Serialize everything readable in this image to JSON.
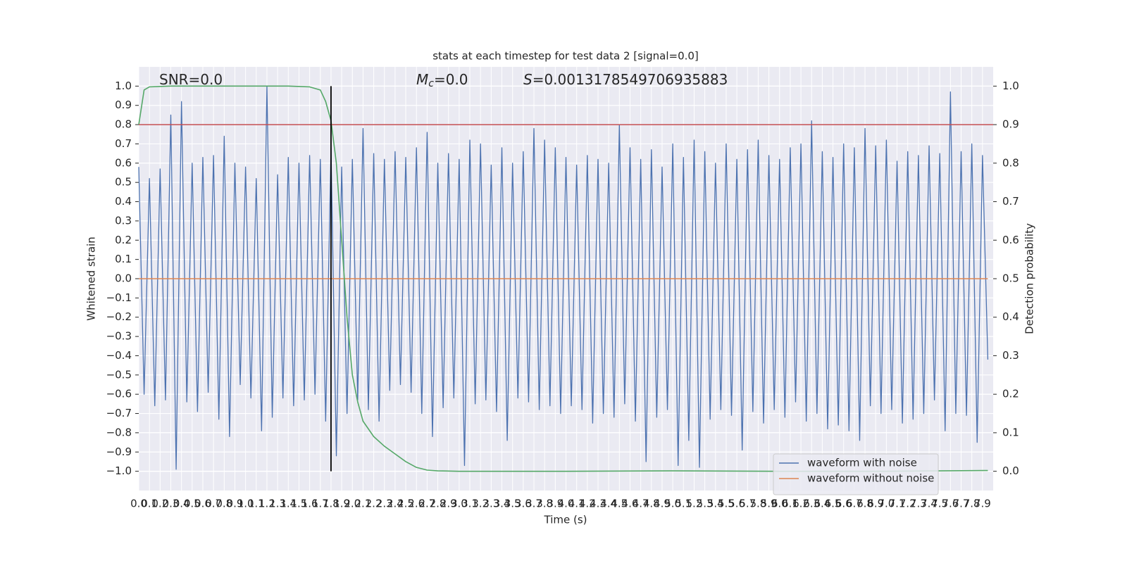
{
  "chart_data": {
    "type": "line",
    "title": "stats at each timestep for test data 2 [signal=0.0]",
    "x_label": "Time (s)",
    "y_label": "Whitened strain",
    "y2_label": "Detection probability",
    "annotations": [
      {
        "text": "SNR=0.0"
      },
      {
        "symbol": "M",
        "subscript": "c",
        "text": "=0.0"
      },
      {
        "symbol": "S",
        "text": "=0.0013178549706935883"
      }
    ],
    "xlim": [
      0,
      8.0
    ],
    "ylim": [
      -1.1,
      1.1
    ],
    "y2lim": [
      -0.05,
      1.05
    ],
    "grid": true,
    "legend": "lower right",
    "xticks": [
      {
        "value": 0.0,
        "label": "0.0"
      },
      {
        "value": 0.1,
        "label": "0.1"
      },
      {
        "value": 0.2,
        "label": "0.2"
      },
      {
        "value": 0.3,
        "label": "0.3"
      },
      {
        "value": 0.4,
        "label": "0.4"
      },
      {
        "value": 0.5,
        "label": "0.5"
      },
      {
        "value": 0.6,
        "label": "0.6"
      },
      {
        "value": 0.7,
        "label": "0.7"
      },
      {
        "value": 0.8,
        "label": "0.8"
      },
      {
        "value": 0.9,
        "label": "0.9"
      },
      {
        "value": 1.0,
        "label": "1.0"
      },
      {
        "value": 1.1,
        "label": "1.1"
      },
      {
        "value": 1.2,
        "label": "1.2"
      },
      {
        "value": 1.3,
        "label": "1.3"
      },
      {
        "value": 1.4,
        "label": "1.4"
      },
      {
        "value": 1.5,
        "label": "1.5"
      },
      {
        "value": 1.6,
        "label": "1.6"
      },
      {
        "value": 1.7,
        "label": "1.7"
      },
      {
        "value": 1.8,
        "label": "1.8"
      },
      {
        "value": 1.9,
        "label": "1.9"
      },
      {
        "value": 2.0,
        "label": "2.0"
      },
      {
        "value": 2.1,
        "label": "2.1"
      },
      {
        "value": 2.2,
        "label": "2.2"
      },
      {
        "value": 2.3,
        "label": "2.3"
      },
      {
        "value": 2.4,
        "label": "2.4"
      },
      {
        "value": 2.5,
        "label": "2.5"
      },
      {
        "value": 2.6,
        "label": "2.6"
      },
      {
        "value": 2.7,
        "label": "2.7"
      },
      {
        "value": 2.8,
        "label": "2.8"
      },
      {
        "value": 2.9,
        "label": "2.9"
      },
      {
        "value": 3.0,
        "label": "3.0"
      },
      {
        "value": 3.1,
        "label": "3.1"
      },
      {
        "value": 3.2,
        "label": "3.2"
      },
      {
        "value": 3.3,
        "label": "3.3"
      },
      {
        "value": 3.4,
        "label": "3.4"
      },
      {
        "value": 3.5,
        "label": "3.5"
      },
      {
        "value": 3.6,
        "label": "3.6"
      },
      {
        "value": 3.7,
        "label": "3.7"
      },
      {
        "value": 3.8,
        "label": "3.8"
      },
      {
        "value": 3.9,
        "label": "3.9"
      },
      {
        "value": 4.0,
        "label": "4.0"
      },
      {
        "value": 4.1,
        "label": "4.1"
      },
      {
        "value": 4.2,
        "label": "4.2"
      },
      {
        "value": 4.3,
        "label": "4.3"
      },
      {
        "value": 4.4,
        "label": "4.4"
      },
      {
        "value": 4.5,
        "label": "4.5"
      },
      {
        "value": 4.6,
        "label": "4.6"
      },
      {
        "value": 4.7,
        "label": "4.7"
      },
      {
        "value": 4.8,
        "label": "4.8"
      },
      {
        "value": 4.9,
        "label": "4.9"
      },
      {
        "value": 5.0,
        "label": "5.0"
      },
      {
        "value": 5.1,
        "label": "5.1"
      },
      {
        "value": 5.2,
        "label": "5.2"
      },
      {
        "value": 5.3,
        "label": "5.3"
      },
      {
        "value": 5.4,
        "label": "5.4"
      },
      {
        "value": 5.5,
        "label": "5.5"
      },
      {
        "value": 5.6,
        "label": "5.6"
      },
      {
        "value": 5.7,
        "label": "5.7"
      },
      {
        "value": 5.8,
        "label": "5.8"
      },
      {
        "value": 5.9,
        "label": "5.9"
      },
      {
        "value": 6.0,
        "label": "6.0"
      },
      {
        "value": 6.1,
        "label": "6.1"
      },
      {
        "value": 6.2,
        "label": "6.2"
      },
      {
        "value": 6.3,
        "label": "6.3"
      },
      {
        "value": 6.4,
        "label": "6.4"
      },
      {
        "value": 6.5,
        "label": "6.5"
      },
      {
        "value": 6.6,
        "label": "6.6"
      },
      {
        "value": 6.7,
        "label": "6.7"
      },
      {
        "value": 6.8,
        "label": "6.8"
      },
      {
        "value": 6.9,
        "label": "6.9"
      },
      {
        "value": 7.0,
        "label": "7.0"
      },
      {
        "value": 7.1,
        "label": "7.1"
      },
      {
        "value": 7.2,
        "label": "7.2"
      },
      {
        "value": 7.3,
        "label": "7.3"
      },
      {
        "value": 7.4,
        "label": "7.4"
      },
      {
        "value": 7.5,
        "label": "7.5"
      },
      {
        "value": 7.6,
        "label": "7.6"
      },
      {
        "value": 7.7,
        "label": "7.7"
      },
      {
        "value": 7.8,
        "label": "7.8"
      },
      {
        "value": 7.9,
        "label": "7.9"
      }
    ],
    "yticks": [
      {
        "value": -1.0,
        "label": "−1.0"
      },
      {
        "value": -0.9,
        "label": "−0.9"
      },
      {
        "value": -0.8,
        "label": "−0.8"
      },
      {
        "value": -0.7,
        "label": "−0.7"
      },
      {
        "value": -0.6,
        "label": "−0.6"
      },
      {
        "value": -0.5,
        "label": "−0.5"
      },
      {
        "value": -0.4,
        "label": "−0.4"
      },
      {
        "value": -0.3,
        "label": "−0.3"
      },
      {
        "value": -0.2,
        "label": "−0.2"
      },
      {
        "value": -0.1,
        "label": "−0.1"
      },
      {
        "value": 0.0,
        "label": "0.0"
      },
      {
        "value": 0.1,
        "label": "0.1"
      },
      {
        "value": 0.2,
        "label": "0.2"
      },
      {
        "value": 0.3,
        "label": "0.3"
      },
      {
        "value": 0.4,
        "label": "0.4"
      },
      {
        "value": 0.5,
        "label": "0.5"
      },
      {
        "value": 0.6,
        "label": "0.6"
      },
      {
        "value": 0.7,
        "label": "0.7"
      },
      {
        "value": 0.8,
        "label": "0.8"
      },
      {
        "value": 0.9,
        "label": "0.9"
      },
      {
        "value": 1.0,
        "label": "1.0"
      }
    ],
    "y2ticks": [
      {
        "value": 0.0,
        "label": "0.0"
      },
      {
        "value": 0.1,
        "label": "0.1"
      },
      {
        "value": 0.2,
        "label": "0.2"
      },
      {
        "value": 0.3,
        "label": "0.3"
      },
      {
        "value": 0.4,
        "label": "0.4"
      },
      {
        "value": 0.5,
        "label": "0.5"
      },
      {
        "value": 0.6,
        "label": "0.6"
      },
      {
        "value": 0.7,
        "label": "0.7"
      },
      {
        "value": 0.8,
        "label": "0.8"
      },
      {
        "value": 0.9,
        "label": "0.9"
      },
      {
        "value": 1.0,
        "label": "1.0"
      }
    ],
    "series": [
      {
        "name": "waveform with noise",
        "color": "#4c72b0",
        "x": [
          0.0,
          0.05,
          0.1,
          0.15,
          0.2,
          0.25,
          0.3,
          0.35,
          0.4,
          0.45,
          0.5,
          0.55,
          0.6,
          0.65,
          0.7,
          0.75,
          0.8,
          0.85,
          0.9,
          0.95,
          1.0,
          1.05,
          1.1,
          1.15,
          1.2,
          1.25,
          1.3,
          1.35,
          1.4,
          1.45,
          1.5,
          1.55,
          1.6,
          1.65,
          1.7,
          1.75,
          1.8,
          1.85,
          1.9,
          1.95,
          2.0,
          2.05,
          2.1,
          2.15,
          2.2,
          2.25,
          2.3,
          2.35,
          2.4,
          2.45,
          2.5,
          2.55,
          2.6,
          2.65,
          2.7,
          2.75,
          2.8,
          2.85,
          2.9,
          2.95,
          3.0,
          3.05,
          3.1,
          3.15,
          3.2,
          3.25,
          3.3,
          3.35,
          3.4,
          3.45,
          3.5,
          3.55,
          3.6,
          3.65,
          3.7,
          3.75,
          3.8,
          3.85,
          3.9,
          3.95,
          4.0,
          4.05,
          4.1,
          4.15,
          4.2,
          4.25,
          4.3,
          4.35,
          4.4,
          4.45,
          4.5,
          4.55,
          4.6,
          4.65,
          4.7,
          4.75,
          4.8,
          4.85,
          4.9,
          4.95,
          5.0,
          5.05,
          5.1,
          5.15,
          5.2,
          5.25,
          5.3,
          5.35,
          5.4,
          5.45,
          5.5,
          5.55,
          5.6,
          5.65,
          5.7,
          5.75,
          5.8,
          5.85,
          5.9,
          5.95,
          6.0,
          6.05,
          6.1,
          6.15,
          6.2,
          6.25,
          6.3,
          6.35,
          6.4,
          6.45,
          6.5,
          6.55,
          6.6,
          6.65,
          6.7,
          6.75,
          6.8,
          6.85,
          6.9,
          6.95,
          7.0,
          7.05,
          7.1,
          7.15,
          7.2,
          7.25,
          7.3,
          7.35,
          7.4,
          7.45,
          7.5,
          7.55,
          7.6,
          7.65,
          7.7,
          7.75,
          7.8,
          7.85,
          7.9,
          7.95
        ],
        "values": [
          0.58,
          -0.6,
          0.52,
          -0.66,
          0.57,
          -0.63,
          0.85,
          -0.99,
          0.92,
          -0.64,
          0.6,
          -0.69,
          0.63,
          -0.59,
          0.64,
          -0.73,
          0.74,
          -0.82,
          0.6,
          -0.55,
          0.58,
          -0.62,
          0.52,
          -0.79,
          1.0,
          -0.72,
          0.54,
          -0.62,
          0.63,
          -0.66,
          0.6,
          -0.63,
          0.64,
          -0.6,
          0.62,
          -0.74,
          0.68,
          -0.92,
          0.58,
          -0.7,
          0.62,
          -0.63,
          0.78,
          -0.68,
          0.65,
          -0.74,
          0.62,
          -0.58,
          0.66,
          -0.55,
          0.63,
          -0.59,
          0.68,
          -0.7,
          0.76,
          -0.82,
          0.6,
          -0.67,
          0.65,
          -0.62,
          0.62,
          -0.97,
          0.72,
          -0.65,
          0.7,
          -0.63,
          0.59,
          -0.69,
          0.68,
          -0.84,
          0.6,
          -0.62,
          0.66,
          -0.64,
          0.78,
          -0.68,
          0.72,
          -0.66,
          0.68,
          -0.7,
          0.63,
          -0.66,
          0.59,
          -0.68,
          0.64,
          -0.75,
          0.62,
          -0.7,
          0.6,
          -0.72,
          0.8,
          -0.65,
          0.68,
          -0.74,
          0.62,
          -0.95,
          0.67,
          -0.72,
          0.58,
          -0.68,
          0.7,
          -0.97,
          0.63,
          -0.84,
          0.72,
          -0.98,
          0.66,
          -0.73,
          0.6,
          -0.68,
          0.7,
          -0.71,
          0.62,
          -0.89,
          0.67,
          -0.69,
          0.72,
          -0.75,
          0.64,
          -0.68,
          0.62,
          -0.72,
          0.68,
          -0.64,
          0.7,
          -0.74,
          0.82,
          -0.7,
          0.66,
          -0.78,
          0.63,
          -0.76,
          0.7,
          -0.79,
          0.68,
          -0.84,
          0.78,
          -0.66,
          0.69,
          -0.7,
          0.72,
          -0.68,
          0.61,
          -0.75,
          0.66,
          -0.73,
          0.64,
          -0.7,
          0.69,
          -0.63,
          0.65,
          -0.79,
          0.97,
          -0.7,
          0.66,
          -0.71,
          0.7,
          -0.85,
          0.64,
          -0.42
        ]
      },
      {
        "name": "waveform without noise",
        "color": "#dd8452",
        "x": [
          0.0,
          7.95
        ],
        "values": [
          0.0,
          0.0
        ]
      },
      {
        "color": "#55a868",
        "axis": "y2",
        "x": [
          0.0,
          0.05,
          0.1,
          0.3,
          0.6,
          1.0,
          1.4,
          1.6,
          1.7,
          1.75,
          1.8,
          1.85,
          1.9,
          1.95,
          2.0,
          2.05,
          2.1,
          2.2,
          2.3,
          2.4,
          2.5,
          2.6,
          2.7,
          2.8,
          3.0,
          4.0,
          5.0,
          6.0,
          7.0,
          7.95
        ],
        "values": [
          0.9,
          0.99,
          0.998,
          1.0,
          1.0,
          1.0,
          1.0,
          0.998,
          0.99,
          0.96,
          0.91,
          0.8,
          0.6,
          0.4,
          0.25,
          0.18,
          0.13,
          0.09,
          0.065,
          0.045,
          0.025,
          0.01,
          0.003,
          0.001,
          0.0,
          0.0,
          0.001,
          0.0,
          0.0,
          0.002
        ]
      }
    ],
    "hlines": [
      {
        "value": 0.9,
        "axis": "y2",
        "color": "#c44e52"
      }
    ],
    "vlines": [
      {
        "value": 1.8,
        "color": "#000000",
        "span": [
          -1.0,
          1.0
        ]
      }
    ]
  }
}
